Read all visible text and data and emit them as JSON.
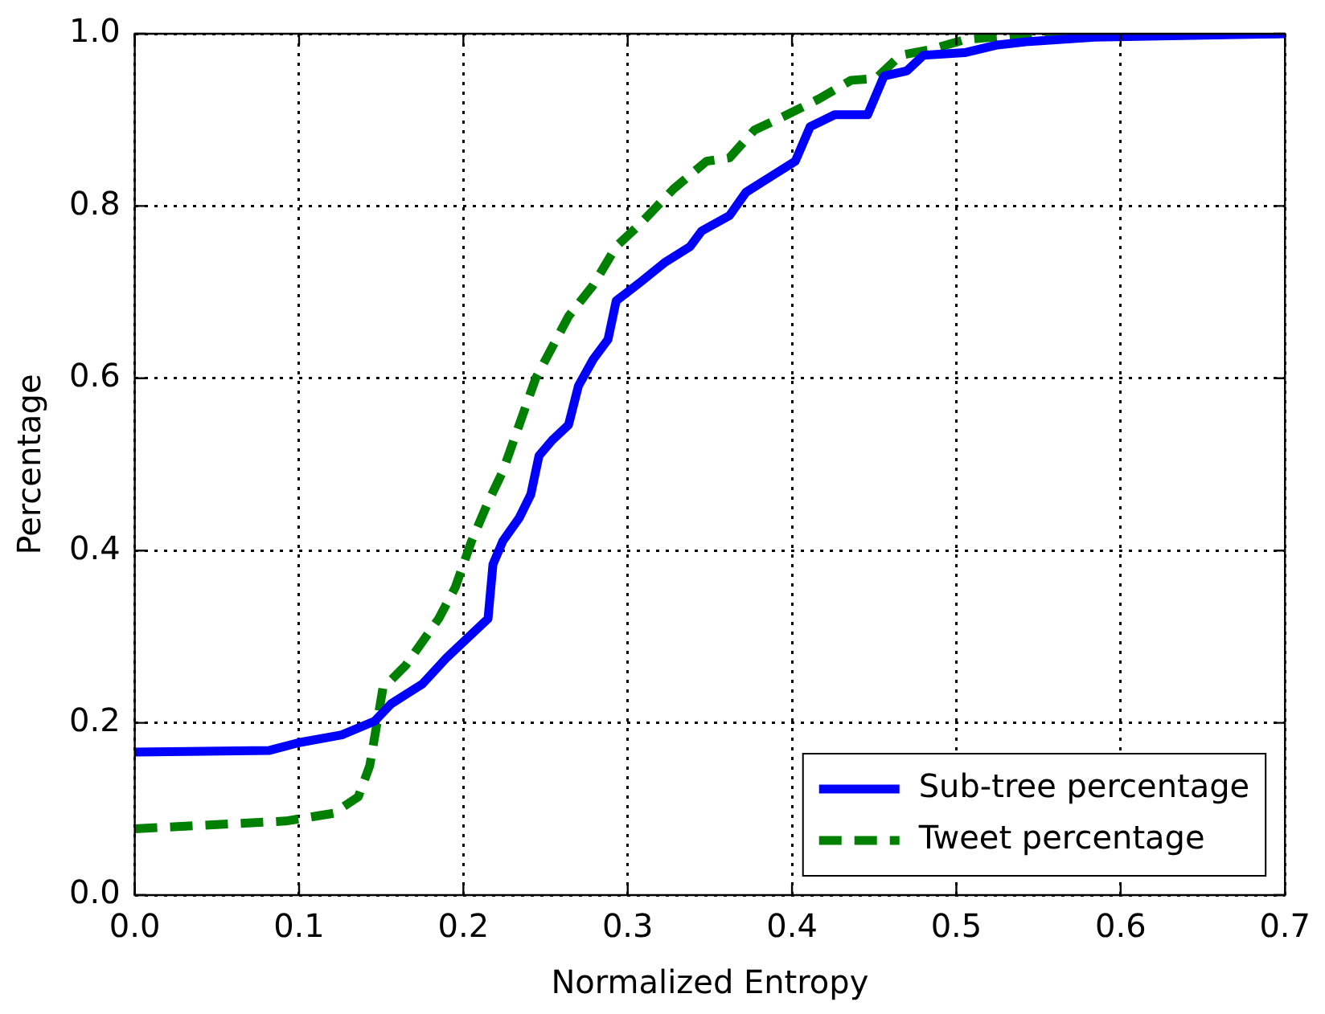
{
  "chart_data": {
    "type": "line",
    "xlabel": "Normalized Entropy",
    "ylabel": "Percentage",
    "xlim": [
      0,
      0.7
    ],
    "ylim": [
      0,
      1
    ],
    "xticks": [
      {
        "value": 0,
        "label": "0.0"
      },
      0.1,
      0.2,
      0.3,
      0.4,
      0.5,
      0.6,
      0.7
    ],
    "yticks": [
      {
        "value": 0,
        "label": "0.0"
      },
      0.2,
      0.4,
      0.6,
      0.8,
      {
        "value": 1,
        "label": "1.0"
      }
    ],
    "grid": true,
    "legend": "bottom right",
    "marker": "none",
    "series": [
      {
        "name": "Sub-tree percentage",
        "color": "#0000ff",
        "line_style": "solid",
        "x": [
          0,
          0.082,
          0.1,
          0.126,
          0.146,
          0.156,
          0.175,
          0.19,
          0.205,
          0.215,
          0.218,
          0.224,
          0.234,
          0.241,
          0.246,
          0.254,
          0.264,
          0.27,
          0.279,
          0.288,
          0.293,
          0.308,
          0.323,
          0.338,
          0.345,
          0.362,
          0.372,
          0.387,
          0.402,
          0.411,
          0.426,
          0.446,
          0.456,
          0.47,
          0.48,
          0.505,
          0.525,
          0.544,
          0.584,
          0.7
        ],
        "values": [
          0.166,
          0.168,
          0.177,
          0.186,
          0.202,
          0.222,
          0.245,
          0.276,
          0.303,
          0.321,
          0.384,
          0.411,
          0.438,
          0.465,
          0.51,
          0.528,
          0.546,
          0.591,
          0.622,
          0.645,
          0.69,
          0.712,
          0.735,
          0.753,
          0.771,
          0.789,
          0.816,
          0.834,
          0.852,
          0.892,
          0.906,
          0.906,
          0.951,
          0.957,
          0.975,
          0.978,
          0.987,
          0.991,
          0.996,
          1.0
        ]
      },
      {
        "name": "Tweet percentage",
        "color": "#008000",
        "line_style": "dashed",
        "x": [
          0,
          0.092,
          0.121,
          0.136,
          0.143,
          0.151,
          0.165,
          0.175,
          0.185,
          0.195,
          0.205,
          0.215,
          0.224,
          0.234,
          0.244,
          0.254,
          0.264,
          0.279,
          0.293,
          0.308,
          0.328,
          0.348,
          0.362,
          0.377,
          0.397,
          0.416,
          0.436,
          0.451,
          0.466,
          0.485,
          0.505,
          0.544,
          0.7
        ],
        "values": [
          0.077,
          0.086,
          0.095,
          0.114,
          0.15,
          0.24,
          0.267,
          0.294,
          0.321,
          0.357,
          0.411,
          0.456,
          0.492,
          0.546,
          0.6,
          0.636,
          0.672,
          0.708,
          0.753,
          0.78,
          0.82,
          0.852,
          0.856,
          0.888,
          0.906,
          0.924,
          0.946,
          0.948,
          0.975,
          0.982,
          0.993,
          1.0,
          1.0
        ]
      }
    ]
  }
}
